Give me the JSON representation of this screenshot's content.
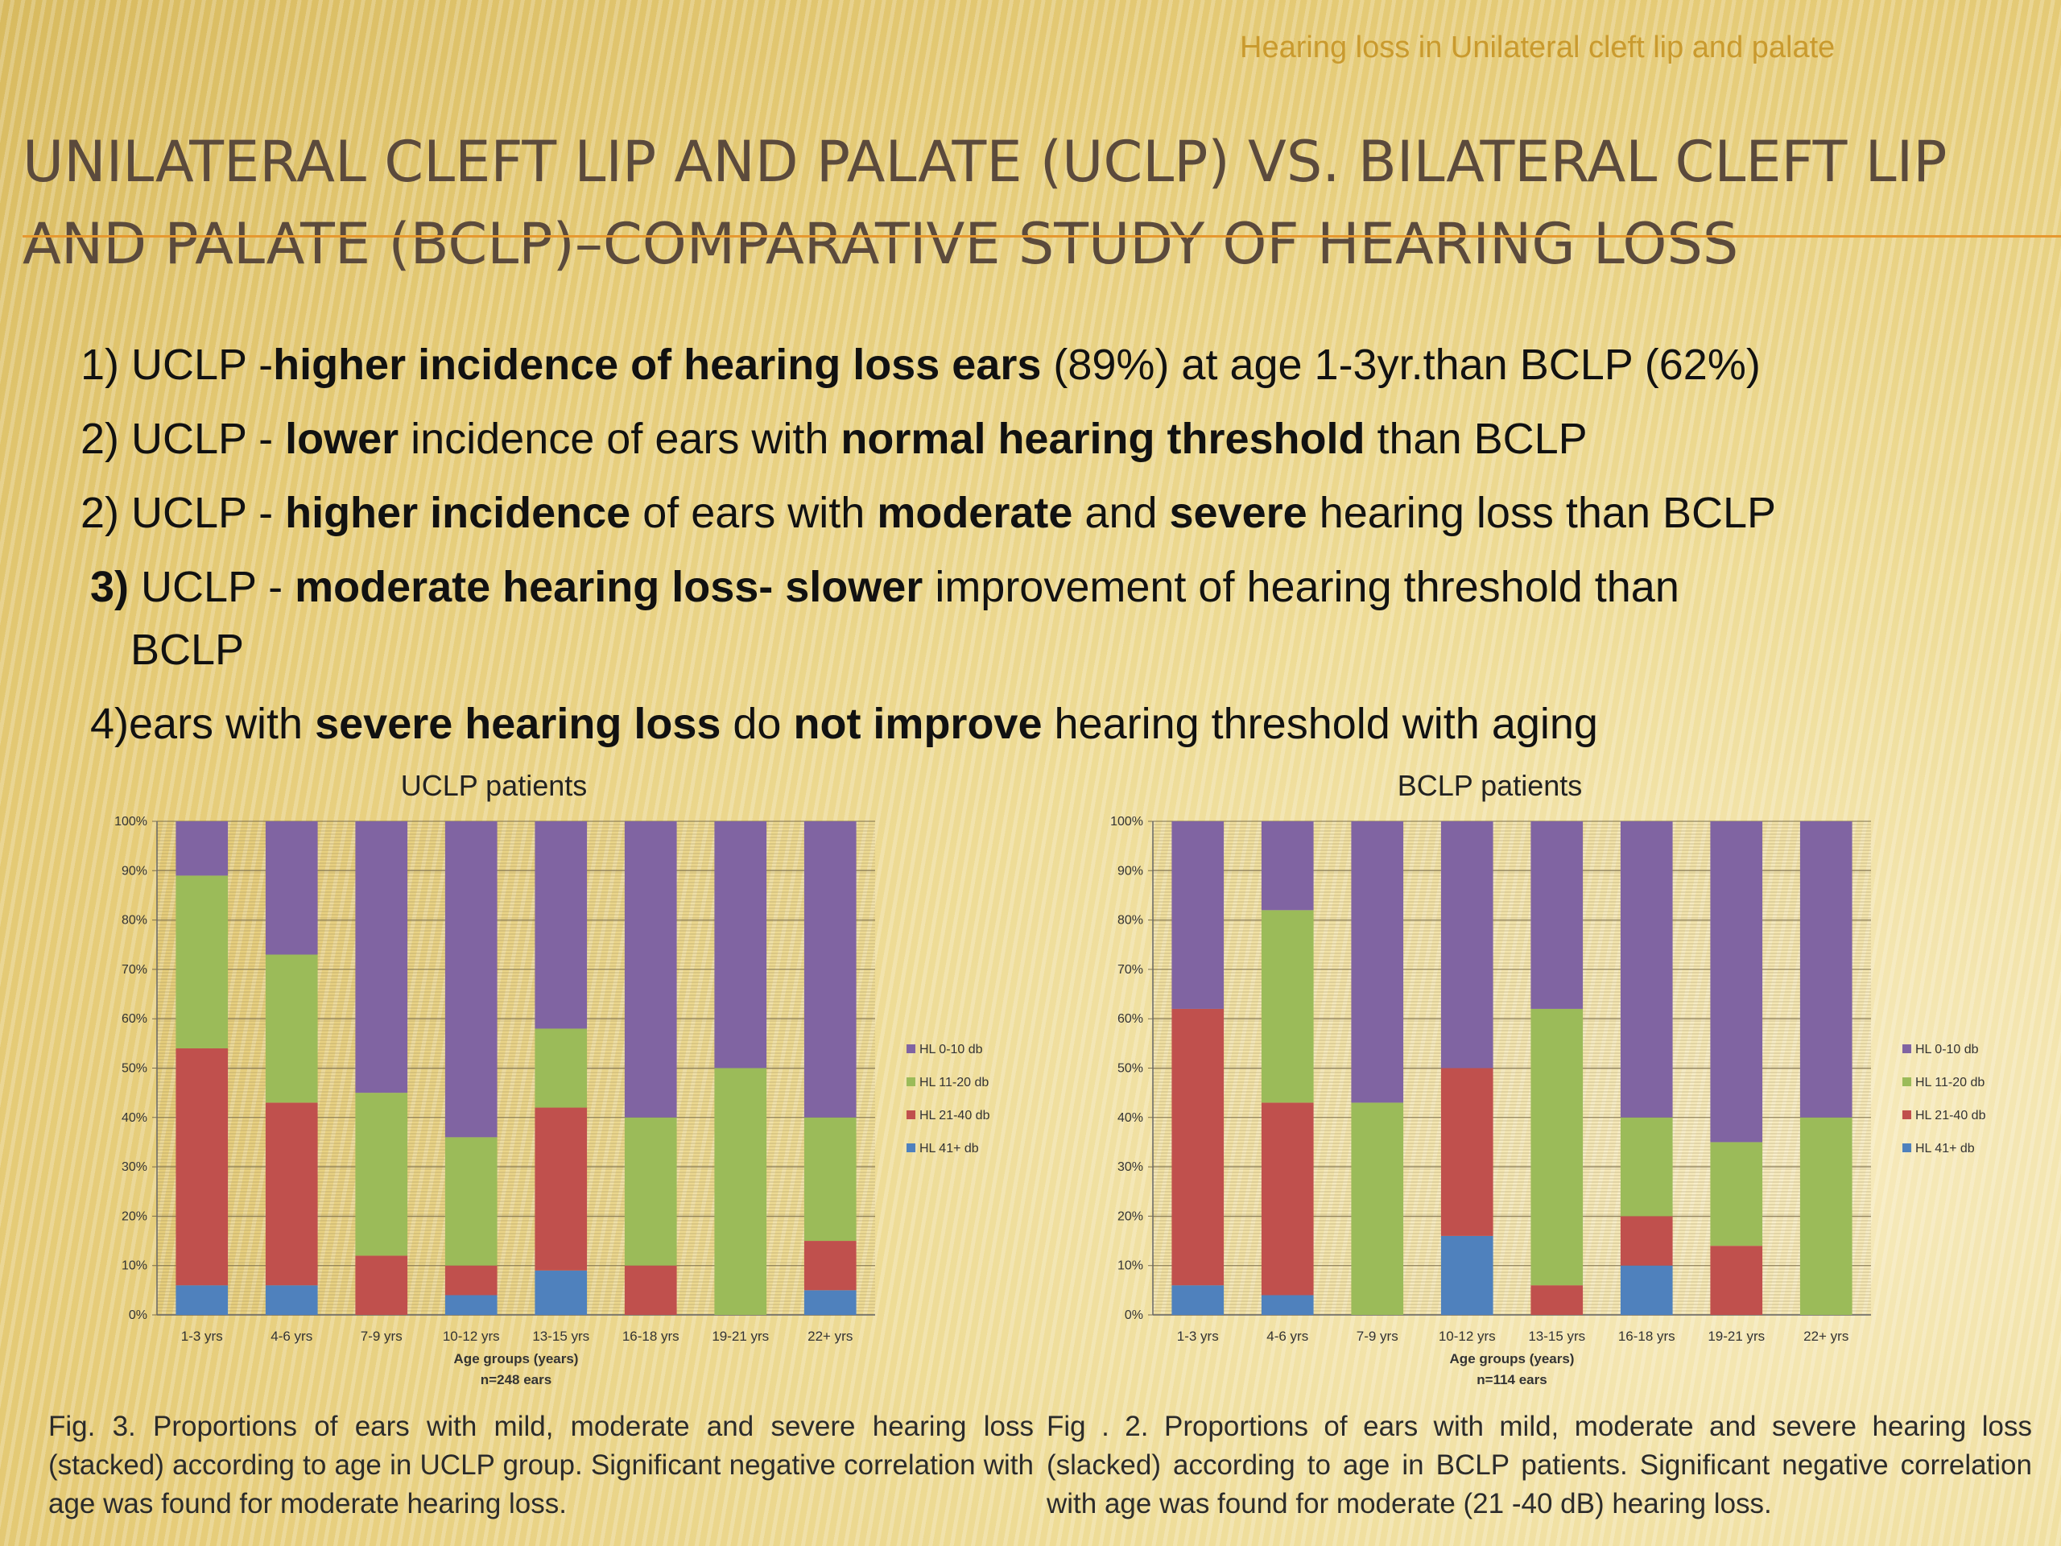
{
  "header_note": "Hearing loss in Unilateral cleft lip and palate",
  "slide_title": "UNILATERAL CLEFT LIP AND PALATE (UCLP)  VS. BILATERAL CLEFT LIP AND PALATE (BCLP)–COMPARATIVE STUDY OF HEARING LOSS",
  "bullets": {
    "b1": {
      "p1": "1) UCLP -",
      "p2": "higher incidence of  hearing loss ears",
      "p3": " (89%) at age 1-3yr.than BCLP (62%)"
    },
    "b2": {
      "p1": "2) UCLP - ",
      "p2": "lower",
      "p3": " incidence of ears with ",
      "p4": "normal hearing threshold",
      "p5": "  than BCLP"
    },
    "b3": {
      "p1": "2) UCLP - ",
      "p2": "higher incidence",
      "p3": " of ears with ",
      "p4": "moderate",
      "p5": " and ",
      "p6": "severe",
      "p7": " hearing loss than BCLP"
    },
    "b4": {
      "p1": "3)",
      "p2": " UCLP - ",
      "p3": "moderate hearing loss- slower",
      "p4": "  improvement of hearing threshold than",
      "p5": "BCLP"
    },
    "b5": {
      "p1": "4)ears with ",
      "p2": "severe hearing loss",
      "p3": " do ",
      "p4": "not improve",
      "p5": " hearing threshold with aging"
    }
  },
  "captions": {
    "uclp": "Fig. 3. Proportions of ears with mild, moderate and severe hearing loss (stacked) according to age in UCLP group. Significant negative correlation with age was found for moderate hearing loss.",
    "bclp": "Fig . 2. Proportions of ears with mild, moderate and severe hearing loss (slacked) according to age in BCLP patients. Significant negative correlation with age was found for moderate (21 -40 dB) hearing loss."
  },
  "series_colors": {
    "HL 41+ db": "#4f81bd",
    "HL 21-40 db": "#c0504d",
    "HL 11-20 db": "#9bbb59",
    "HL 0-10 db": "#8064a2"
  },
  "chart_data": [
    {
      "type": "bar",
      "stacked": true,
      "title": "UCLP patients",
      "xlabel": "Age groups (years)",
      "note": "n=248 ears",
      "ylim": [
        0,
        100
      ],
      "yticks": [
        "0%",
        "10%",
        "20%",
        "30%",
        "40%",
        "50%",
        "60%",
        "70%",
        "80%",
        "90%",
        "100%"
      ],
      "grid": true,
      "legend_position": "right",
      "categories": [
        "1-3 yrs",
        "4-6 yrs",
        "7-9 yrs",
        "10-12 yrs",
        "13-15 yrs",
        "16-18 yrs",
        "19-21 yrs",
        "22+ yrs"
      ],
      "series": [
        {
          "name": "HL 41+ db",
          "values": [
            6,
            6,
            0,
            4,
            9,
            0,
            0,
            5
          ]
        },
        {
          "name": "HL 21-40 db",
          "values": [
            48,
            37,
            12,
            6,
            33,
            10,
            0,
            10
          ]
        },
        {
          "name": "HL 11-20 db",
          "values": [
            35,
            30,
            33,
            26,
            16,
            30,
            50,
            25
          ]
        },
        {
          "name": "HL 0-10 db",
          "values": [
            11,
            27,
            55,
            64,
            42,
            60,
            50,
            60
          ]
        }
      ],
      "legend_order": [
        "HL 0-10 db",
        "HL 11-20 db",
        "HL 21-40 db",
        "HL 41+ db"
      ]
    },
    {
      "type": "bar",
      "stacked": true,
      "title": "BCLP patients",
      "xlabel": "Age groups (years)",
      "note": "n=114 ears",
      "ylim": [
        0,
        100
      ],
      "yticks": [
        "0%",
        "10%",
        "20%",
        "30%",
        "40%",
        "50%",
        "60%",
        "70%",
        "80%",
        "90%",
        "100%"
      ],
      "grid": true,
      "legend_position": "right",
      "categories": [
        "1-3 yrs",
        "4-6 yrs",
        "7-9 yrs",
        "10-12 yrs",
        "13-15 yrs",
        "16-18 yrs",
        "19-21 yrs",
        "22+ yrs"
      ],
      "series": [
        {
          "name": "HL 41+ db",
          "values": [
            6,
            4,
            0,
            16,
            0,
            10,
            0,
            0
          ]
        },
        {
          "name": "HL 21-40 db",
          "values": [
            56,
            39,
            0,
            34,
            6,
            10,
            14,
            0
          ]
        },
        {
          "name": "HL 11-20 db",
          "values": [
            0,
            39,
            43,
            0,
            56,
            20,
            21,
            40
          ]
        },
        {
          "name": "HL 0-10 db",
          "values": [
            38,
            18,
            57,
            50,
            38,
            60,
            65,
            60
          ]
        }
      ],
      "legend_order": [
        "HL 0-10 db",
        "HL 11-20 db",
        "HL 21-40 db",
        "HL 41+ db"
      ]
    }
  ]
}
